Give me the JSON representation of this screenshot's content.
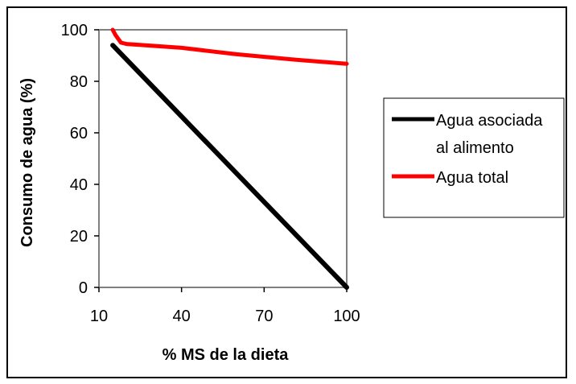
{
  "chart_data": {
    "type": "line",
    "xlabel": "% MS de la dieta",
    "ylabel": "Consumo de agua (%)",
    "xlim": [
      10,
      100
    ],
    "ylim": [
      0,
      100
    ],
    "xticks": [
      10,
      40,
      70,
      100
    ],
    "yticks": [
      0,
      20,
      40,
      60,
      80,
      100
    ],
    "grid": false,
    "legend_position": "right",
    "series": [
      {
        "name_lines": [
          "Agua asociada",
          "al alimento"
        ],
        "color": "#000000",
        "x": [
          15,
          100
        ],
        "y": [
          94,
          0
        ]
      },
      {
        "name_lines": [
          "Agua total"
        ],
        "color": "#ff0000",
        "x": [
          15,
          16,
          18,
          20,
          40,
          60,
          80,
          100
        ],
        "y": [
          100,
          98,
          95,
          94.5,
          93,
          90.5,
          88.5,
          86.8
        ]
      }
    ]
  }
}
